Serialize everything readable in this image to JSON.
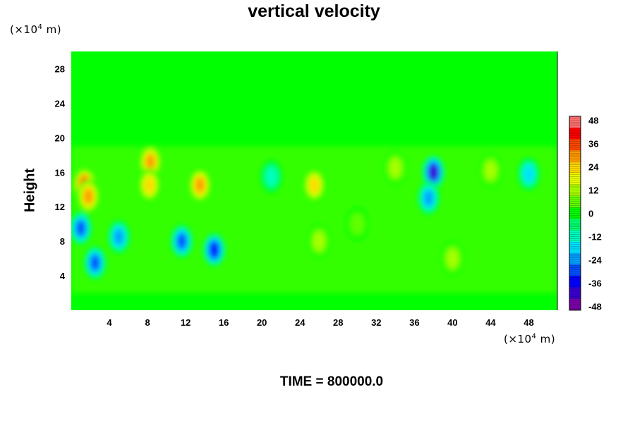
{
  "chart_data": {
    "type": "heatmap",
    "title": "vertical velocity",
    "ylabel": "Height",
    "xlabel": "",
    "y_unit": "(×10⁴ m)",
    "x_unit": "(×10⁴ m)",
    "x_unit_parts": {
      "pre": "(×10",
      "exp": "4",
      "post": " m)"
    },
    "y_unit_parts": {
      "pre": "(×10",
      "exp": "4",
      "post": " m)"
    },
    "xlim": [
      0,
      51
    ],
    "ylim": [
      0,
      30
    ],
    "x_ticks": [
      4,
      8,
      12,
      16,
      20,
      24,
      28,
      32,
      36,
      40,
      44,
      48
    ],
    "y_ticks": [
      4,
      8,
      12,
      16,
      20,
      24,
      28
    ],
    "colorbar": {
      "ticks": [
        48,
        36,
        24,
        12,
        0,
        -12,
        -24,
        -36,
        -48
      ],
      "range": [
        -50,
        50
      ],
      "colors": [
        "#7a00a8",
        "#3a00d0",
        "#0000ff",
        "#0050ff",
        "#00a0ff",
        "#00e0ff",
        "#00ffc0",
        "#00ff70",
        "#00ff00",
        "#60ff00",
        "#a8ff00",
        "#e8ff00",
        "#ffd800",
        "#ff9800",
        "#ff4800",
        "#ff0000",
        "#ff7070"
      ]
    },
    "field": {
      "background_value": 0,
      "features": [
        {
          "x": 1.4,
          "y": 14.5,
          "v": 40
        },
        {
          "x": 1.8,
          "y": 13.2,
          "v": 30
        },
        {
          "x": 8.3,
          "y": 17.2,
          "v": 32
        },
        {
          "x": 8.2,
          "y": 14.5,
          "v": 26
        },
        {
          "x": 13.5,
          "y": 14.5,
          "v": 28
        },
        {
          "x": 25.5,
          "y": 14.5,
          "v": 24
        },
        {
          "x": 1.0,
          "y": 9.5,
          "v": -32
        },
        {
          "x": 2.5,
          "y": 5.5,
          "v": -30
        },
        {
          "x": 5.0,
          "y": 8.5,
          "v": -22
        },
        {
          "x": 11.6,
          "y": 8.0,
          "v": -30
        },
        {
          "x": 15.0,
          "y": 7.0,
          "v": -36
        },
        {
          "x": 38.0,
          "y": 16.0,
          "v": -44
        },
        {
          "x": 37.5,
          "y": 13.0,
          "v": -24
        },
        {
          "x": 48.0,
          "y": 15.8,
          "v": -20
        },
        {
          "x": 21.0,
          "y": 15.5,
          "v": -14
        },
        {
          "x": 34.0,
          "y": 16.5,
          "v": 14
        },
        {
          "x": 26.0,
          "y": 8.0,
          "v": 10
        },
        {
          "x": 40.0,
          "y": 6.0,
          "v": 12
        },
        {
          "x": 44.0,
          "y": 16.2,
          "v": 12
        },
        {
          "x": 30.0,
          "y": 10.0,
          "v": 8
        }
      ]
    },
    "grid": false,
    "legend": "none"
  },
  "footer": {
    "time_label": "TIME = 800000.0"
  }
}
